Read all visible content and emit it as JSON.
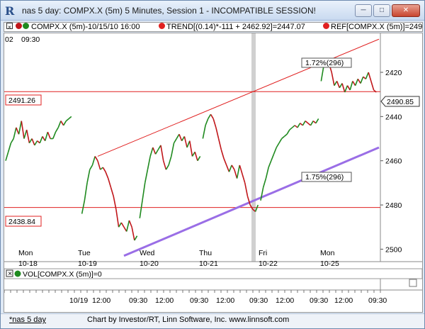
{
  "window": {
    "title": "nas 5 day: COMPX.X (5m) 5 Minutes, Session 1 - INCOMPATIBLE SESSION!",
    "app_icon_letter": "R"
  },
  "legend": {
    "main": "COMPX.X (5m)-10/15/10 16:00",
    "trend": "TREND[(0.14)*-111 + 2462.92]=2447.07",
    "ref": "REF[COMPX.X (5m)]=249"
  },
  "top_time_labels": [
    "02",
    "09:30"
  ],
  "price_labels": {
    "upper_ref": "2491.26",
    "lower_ref": "2438.84",
    "current": "2490.85"
  },
  "annotations": {
    "upper_pct": "1.72%(296)",
    "lower_pct": "1.75%(296)"
  },
  "y_axis_ticks": [
    "2500",
    "2480",
    "2460",
    "2440",
    "2420"
  ],
  "day_labels": [
    {
      "day": "Mon",
      "date": "10-18"
    },
    {
      "day": "Tue",
      "date": "10-19"
    },
    {
      "day": "Wed",
      "date": "10-20"
    },
    {
      "day": "Thu",
      "date": "10-21"
    },
    {
      "day": "Fri",
      "date": "10-22"
    },
    {
      "day": "Mon",
      "date": "10-25"
    }
  ],
  "volume_legend": "VOL[COMPX.X (5m)]=0",
  "x_axis_labels": [
    "10/19",
    "12:00",
    "09:30",
    "12:00",
    "09:30",
    "12:00",
    "09:30",
    "12:00",
    "09:30",
    "12:00",
    "09:30"
  ],
  "status": {
    "tab": "*nas 5 day",
    "credit": "Chart by Investor/RT, Linn Software, Inc. www.linnsoft.com"
  },
  "colors": {
    "bull": "#1f8a1f",
    "bear": "#c0161a",
    "trend": "#e02020",
    "channel": "#9a6ee6",
    "ref": "#e02020"
  },
  "chart_data": {
    "type": "line",
    "title": "",
    "ylim": [
      2415,
      2517
    ],
    "yticks": [
      2420,
      2440,
      2460,
      2480,
      2500
    ],
    "segments": [
      {
        "day": "10-18",
        "x": [
          0,
          1,
          2,
          3,
          4,
          5,
          6,
          7,
          8,
          9,
          10,
          11,
          12,
          13,
          14,
          15,
          16,
          17,
          18,
          19,
          20,
          21,
          22,
          23,
          24,
          25
        ],
        "y": [
          2460,
          2464,
          2468,
          2470,
          2475,
          2472,
          2478,
          2470,
          2474,
          2468,
          2470,
          2467,
          2469,
          2468,
          2471,
          2469,
          2473,
          2470,
          2470,
          2473,
          2475,
          2478,
          2476,
          2478,
          2479,
          2480
        ]
      },
      {
        "day": "10-19",
        "x": [
          29,
          30,
          31,
          32,
          33,
          34,
          35,
          36,
          37,
          38,
          39,
          40,
          41,
          42,
          43,
          44,
          45,
          46,
          47,
          48,
          49,
          50
        ],
        "y": [
          2436,
          2442,
          2450,
          2456,
          2458,
          2462,
          2460,
          2456,
          2457,
          2455,
          2452,
          2448,
          2444,
          2438,
          2430,
          2432,
          2430,
          2428,
          2433,
          2430,
          2424,
          2426
        ]
      },
      {
        "day": "10-20",
        "x": [
          51,
          52,
          53,
          54,
          55,
          56,
          57,
          58,
          59,
          60,
          61,
          62,
          63,
          64,
          65,
          66,
          67,
          68,
          69,
          70,
          71,
          72,
          73,
          74
        ],
        "y": [
          2434,
          2442,
          2450,
          2456,
          2462,
          2466,
          2463,
          2465,
          2467,
          2460,
          2456,
          2458,
          2462,
          2468,
          2470,
          2472,
          2469,
          2471,
          2466,
          2469,
          2462,
          2464,
          2460,
          2462
        ]
      },
      {
        "day": "10-21",
        "x": [
          75,
          76,
          77,
          78,
          79,
          80,
          81,
          82,
          83,
          84,
          85,
          86,
          87,
          88,
          89,
          90,
          91,
          92,
          93,
          94,
          95,
          96
        ],
        "y": [
          2470,
          2476,
          2479,
          2481,
          2479,
          2475,
          2470,
          2465,
          2461,
          2458,
          2455,
          2458,
          2456,
          2452,
          2458,
          2454,
          2450,
          2444,
          2440,
          2438,
          2437,
          2440
        ]
      },
      {
        "day": "10-22",
        "x": [
          97,
          98,
          99,
          100,
          101,
          102,
          103,
          104,
          105,
          106,
          107,
          108,
          109,
          110,
          111,
          112,
          113,
          114,
          115,
          116,
          117,
          118,
          119
        ],
        "y": [
          2442,
          2448,
          2452,
          2457,
          2460,
          2463,
          2466,
          2468,
          2470,
          2471,
          2472,
          2474,
          2475,
          2476,
          2475,
          2477,
          2476,
          2478,
          2477,
          2476,
          2478,
          2477,
          2479
        ]
      },
      {
        "day": "10-25",
        "x": [
          120,
          121,
          122,
          123,
          124,
          125,
          126,
          127,
          128,
          129,
          130,
          131,
          132,
          133,
          134,
          135,
          136,
          137,
          138,
          139,
          140,
          141
        ],
        "y": [
          2496,
          2503,
          2506,
          2504,
          2500,
          2494,
          2496,
          2493,
          2495,
          2491,
          2494,
          2492,
          2496,
          2494,
          2497,
          2495,
          2498,
          2497,
          2500,
          2496,
          2492,
          2491
        ]
      }
    ],
    "x_range": [
      0,
      142
    ],
    "ref_lines": [
      2491.26,
      2438.84
    ],
    "trend_line": {
      "x": [
        35,
        142
      ],
      "y": [
        2462,
        2515
      ]
    },
    "channel_line": {
      "x": [
        45,
        142
      ],
      "y": [
        2417,
        2466
      ]
    }
  }
}
